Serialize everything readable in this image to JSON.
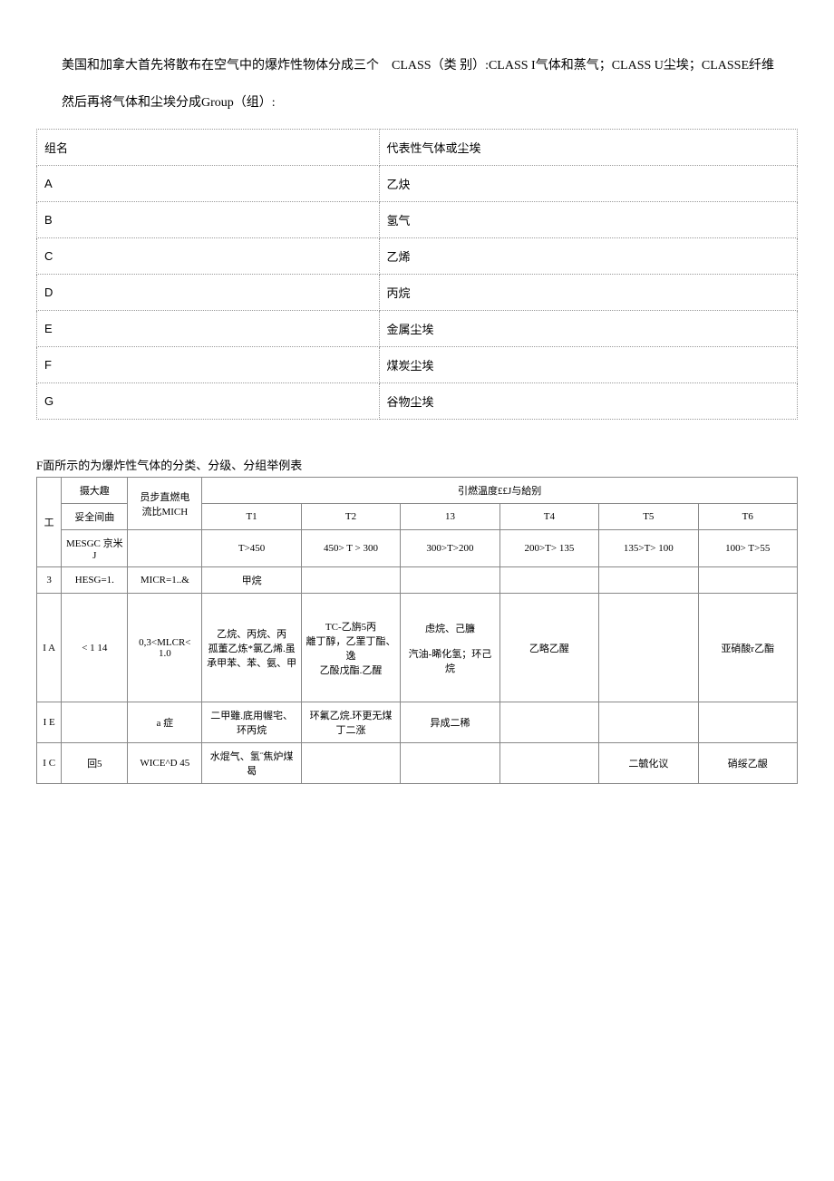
{
  "paragraphs": {
    "p1": "美国和加拿大首先将散布在空气中的爆炸性物体分成三个　CLASS（类 别）:CLASS I气体和蒸气；CLASS U尘埃；CLASSE纤维",
    "p2": "然后再将气体和尘埃分成Group（组）:"
  },
  "table1": {
    "header": {
      "col1": "组名",
      "col2": "代表性气体或尘埃"
    },
    "rows": [
      {
        "c1": "A",
        "c2": "乙炔"
      },
      {
        "c1": "B",
        "c2": "氢气"
      },
      {
        "c1": "C",
        "c2": "乙烯"
      },
      {
        "c1": "D",
        "c2": "丙烷"
      },
      {
        "c1": "E",
        "c2": "金属尘埃"
      },
      {
        "c1": "F",
        "c2": "煤炭尘埃"
      },
      {
        "c1": "G",
        "c2": "谷物尘埃"
      }
    ]
  },
  "caption": "F面所示的为爆炸性气体的分类、分级、分组举例表",
  "table2": {
    "header": {
      "gong": "工",
      "mesg1": "摄大趣",
      "mesg2": "妥全间曲",
      "mesg3": "MESGC 京米J",
      "mic1": "员步直燃电",
      "mic2": "流比MICH",
      "group_title": "引燃温度££J与給别",
      "t1": "T1",
      "t2": "T2",
      "t3": "13",
      "t4": "T4",
      "t5": "T5",
      "t6": "T6",
      "t1r": "T>450",
      "t2r": "450> T > 300",
      "t3r": "300>T>200",
      "t4r": "200>T> 135",
      "t5r": "135>T> 100",
      "t6r": "100> T>55"
    },
    "rows": [
      {
        "c0": "3",
        "c1": "HESG=1.",
        "c2": "MICR=1..&",
        "t1": "甲烷",
        "t2": "",
        "t3": "",
        "t4": "",
        "t5": "",
        "t6": ""
      },
      {
        "c0": "I A",
        "c1": "< 1 14",
        "c2": "0,3<MLCR< 1.0",
        "t1": "乙烷、丙烷、丙\n孤董乙炼*氯乙烯.虽承甲苯、苯、氨、甲",
        "t2": "TC-乙旃5丙\n離丁醇，乙罣丁酯、逸\n乙酘戊酯.乙醒",
        "t3": "虑烷、己臁\n\n汽油-晞化氢；环己烷",
        "t4": "乙略乙醒",
        "t5": "",
        "t6": "亚硝酸r乙酯"
      },
      {
        "c0": "I E",
        "c1": "",
        "c2": "a 症",
        "t1": "二甲雖.底用幄宅、环丙烷",
        "t2": "环氟乙烷.环更无煤丁二涨",
        "t3": "异成二稀",
        "t4": "",
        "t5": "",
        "t6": ""
      },
      {
        "c0": "I C",
        "c1": "回5",
        "c2": "WICE^D 45",
        "t1": "水焜气、氢˝焦炉煤曷",
        "t2": "",
        "t3": "",
        "t4": "",
        "t5": "二毓化议",
        "t6": "硝绥乙龈"
      }
    ]
  }
}
